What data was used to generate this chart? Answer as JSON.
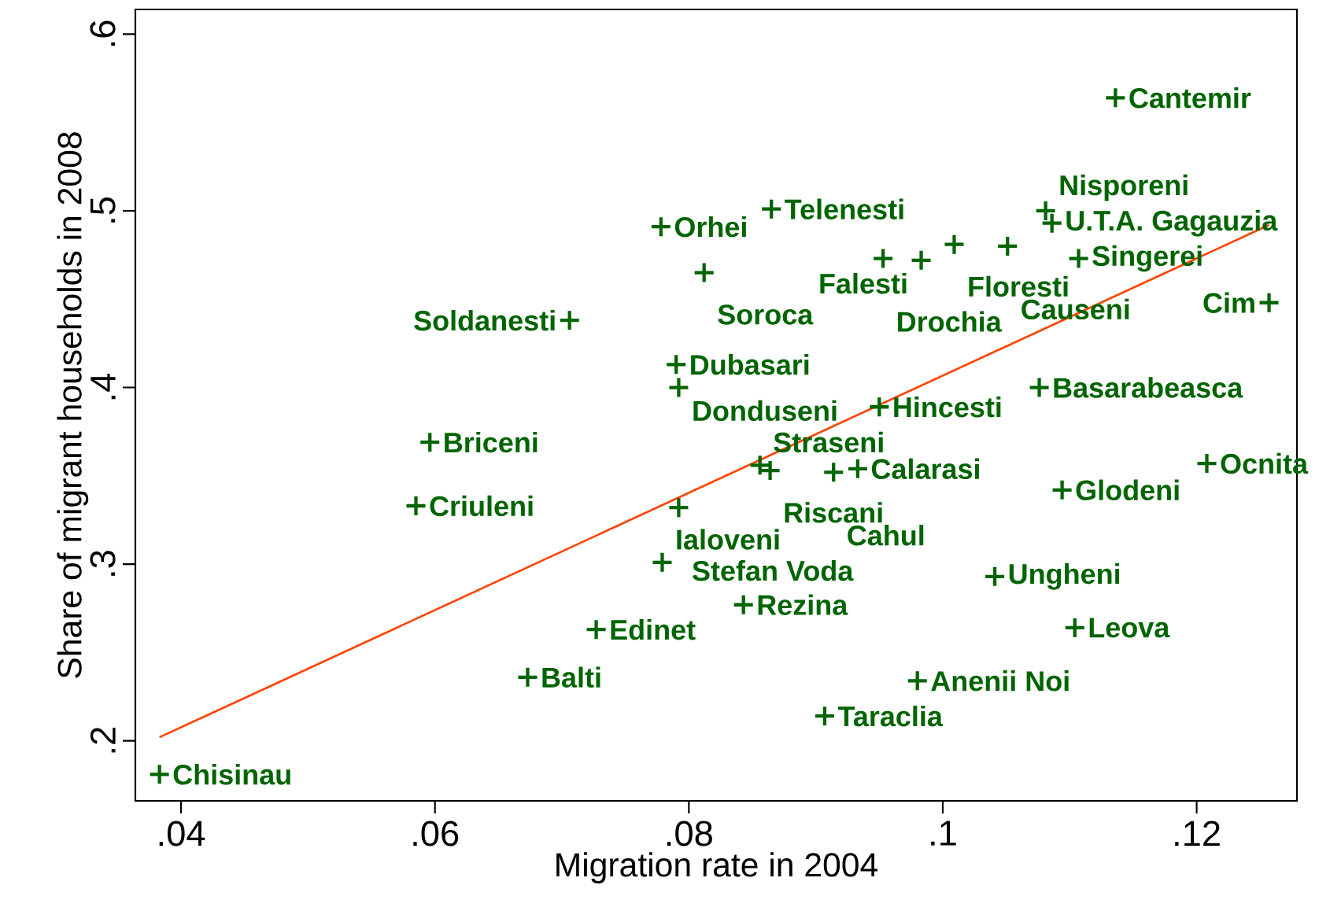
{
  "chart_data": {
    "type": "scatter",
    "xlabel": "Migration rate in 2004",
    "ylabel": "Share of migrant households in 2008",
    "xlim": [
      0.0364,
      0.1279
    ],
    "ylim": [
      0.166,
      0.614
    ],
    "xticks": [
      {
        "value": 0.04,
        "label": ".04"
      },
      {
        "value": 0.06,
        "label": ".06"
      },
      {
        "value": 0.08,
        "label": ".08"
      },
      {
        "value": 0.1,
        "label": ".1"
      },
      {
        "value": 0.12,
        "label": ".12"
      }
    ],
    "yticks": [
      {
        "value": 0.2,
        "label": ".2"
      },
      {
        "value": 0.3,
        "label": ".3"
      },
      {
        "value": 0.4,
        "label": ".4"
      },
      {
        "value": 0.5,
        "label": ".5"
      },
      {
        "value": 0.6,
        "label": ".6"
      }
    ],
    "grid": false,
    "series": [
      {
        "marker": "cross",
        "color": "#006400",
        "x": [
          0.1136,
          0.0865,
          0.0778,
          0.1081,
          0.1086,
          0.1009,
          0.1051,
          0.0953,
          0.0983,
          0.1107,
          0.0812,
          0.0706,
          0.1257,
          0.079,
          0.0792,
          0.095,
          0.1076,
          0.0596,
          0.0856,
          0.0864,
          0.0914,
          0.0933,
          0.1208,
          0.1094,
          0.0585,
          0.0792,
          0.0779,
          0.1041,
          0.0843,
          0.0727,
          0.1104,
          0.0673,
          0.098,
          0.0907,
          0.0383
        ],
        "values": [
          0.564,
          0.501,
          0.491,
          0.5,
          0.493,
          0.481,
          0.48,
          0.473,
          0.472,
          0.473,
          0.465,
          0.438,
          0.448,
          0.413,
          0.4,
          0.389,
          0.4,
          0.369,
          0.356,
          0.353,
          0.352,
          0.354,
          0.357,
          0.342,
          0.333,
          0.332,
          0.301,
          0.293,
          0.277,
          0.263,
          0.264,
          0.236,
          0.234,
          0.214,
          0.181
        ]
      },
      {
        "type": "line",
        "color": "#ff4500",
        "x": [
          0.0383,
          0.1257
        ],
        "values": [
          0.202,
          0.492
        ]
      }
    ],
    "annotations": [
      {
        "text": "Cantemir",
        "x": 0.1136,
        "y": 0.564
      },
      {
        "text": "Telenesti",
        "x": 0.0865,
        "y": 0.501
      },
      {
        "text": "Orhei",
        "x": 0.0778,
        "y": 0.491
      },
      {
        "text": "Nisporeni",
        "x": 0.1081,
        "y": 0.5
      },
      {
        "text": "U.T.A. Gagauzia",
        "x": 0.1086,
        "y": 0.493
      },
      {
        "text": "Floresti",
        "x": 0.1009,
        "y": 0.481
      },
      {
        "text": "Causeni",
        "x": 0.1051,
        "y": 0.48
      },
      {
        "text": "Drochia",
        "x": 0.0953,
        "y": 0.473
      },
      {
        "text": "Falesti",
        "x": 0.0983,
        "y": 0.472
      },
      {
        "text": "Singerei",
        "x": 0.1107,
        "y": 0.473
      },
      {
        "text": "Soroca",
        "x": 0.0812,
        "y": 0.465
      },
      {
        "text": "Soldanesti",
        "x": 0.0706,
        "y": 0.438
      },
      {
        "text": "Cim",
        "x": 0.1257,
        "y": 0.448
      },
      {
        "text": "Dubasari",
        "x": 0.079,
        "y": 0.413
      },
      {
        "text": "Donduseni",
        "x": 0.0792,
        "y": 0.4
      },
      {
        "text": "Hincesti",
        "x": 0.095,
        "y": 0.389
      },
      {
        "text": "Basarabeasca",
        "x": 0.1076,
        "y": 0.4
      },
      {
        "text": "Briceni",
        "x": 0.0596,
        "y": 0.369
      },
      {
        "text": "Straseni",
        "x": 0.0856,
        "y": 0.356
      },
      {
        "text": "Riscani",
        "x": 0.0864,
        "y": 0.353
      },
      {
        "text": "Cahul",
        "x": 0.0914,
        "y": 0.352
      },
      {
        "text": "Calarasi",
        "x": 0.0933,
        "y": 0.354
      },
      {
        "text": "Ocnita",
        "x": 0.1208,
        "y": 0.357
      },
      {
        "text": "Glodeni",
        "x": 0.1094,
        "y": 0.342
      },
      {
        "text": "Criuleni",
        "x": 0.0585,
        "y": 0.333
      },
      {
        "text": "Stefan Voda",
        "x": 0.0792,
        "y": 0.332
      },
      {
        "text": "Ialoveni",
        "x": 0.0779,
        "y": 0.301
      },
      {
        "text": "Ungheni",
        "x": 0.1041,
        "y": 0.293
      },
      {
        "text": "Rezina",
        "x": 0.0843,
        "y": 0.277
      },
      {
        "text": "Edinet",
        "x": 0.0727,
        "y": 0.263
      },
      {
        "text": "Leova",
        "x": 0.1104,
        "y": 0.264
      },
      {
        "text": "Balti",
        "x": 0.0673,
        "y": 0.236
      },
      {
        "text": "Anenii Noi",
        "x": 0.098,
        "y": 0.234
      },
      {
        "text": "Taraclia",
        "x": 0.0907,
        "y": 0.214
      },
      {
        "text": "Chisinau",
        "x": 0.0383,
        "y": 0.181
      }
    ]
  }
}
